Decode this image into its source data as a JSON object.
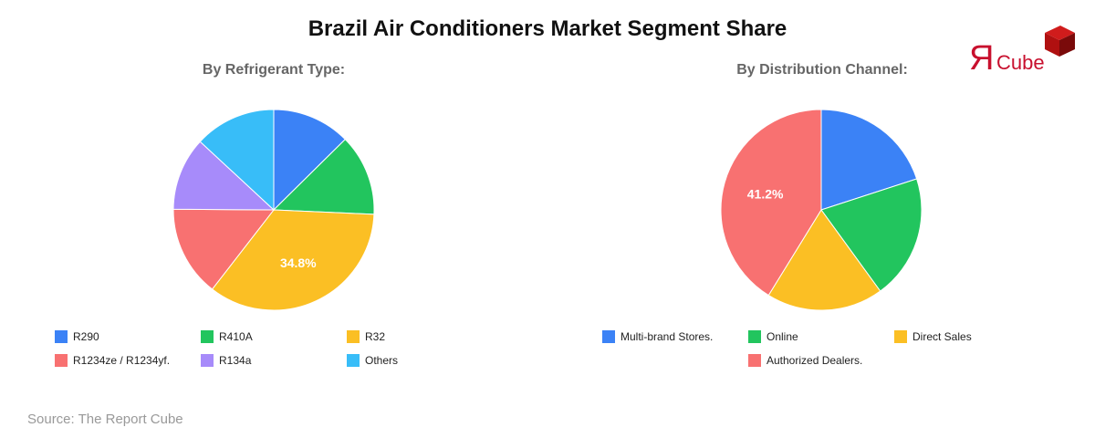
{
  "header": {
    "title": "Brazil Air Conditioners Market Segment Share"
  },
  "logo": {
    "text_mark": "Я",
    "text": "Cube",
    "color": "#c8102e"
  },
  "footer": {
    "source": "Source: The Report Cube"
  },
  "chart_data": [
    {
      "type": "pie",
      "title": "By Refrigerant Type:",
      "categories": [
        "R290",
        "R410A",
        "R32",
        "R1234ze / R1234yf.",
        "R134a",
        "Others"
      ],
      "values": [
        12.6,
        13.1,
        34.8,
        14.6,
        11.8,
        13.1
      ],
      "colors": [
        "#3b82f6",
        "#22c55e",
        "#fbbf24",
        "#f87171",
        "#a78bfa",
        "#38bdf8"
      ],
      "labeled_slices": [
        {
          "category": "R32",
          "label": "34.8%"
        }
      ],
      "legend_position": "bottom",
      "start_angle": 0,
      "direction": "clockwise"
    },
    {
      "type": "pie",
      "title": "By Distribution Channel:",
      "categories": [
        "Multi-brand Stores.",
        "Online",
        "Direct Sales",
        "Authorized Dealers."
      ],
      "values": [
        20.0,
        20.0,
        18.8,
        41.2
      ],
      "colors": [
        "#3b82f6",
        "#22c55e",
        "#fbbf24",
        "#f87171"
      ],
      "labeled_slices": [
        {
          "category": "Authorized Dealers.",
          "label": "41.2%"
        }
      ],
      "legend_position": "bottom",
      "start_angle": 0,
      "direction": "clockwise"
    }
  ]
}
